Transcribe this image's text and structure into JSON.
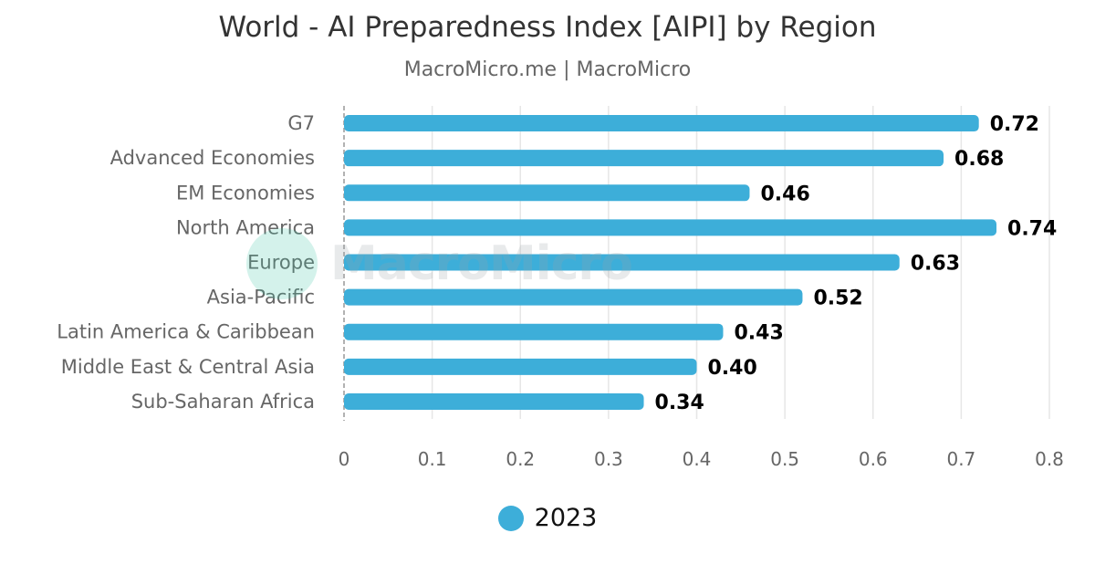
{
  "chart_data": {
    "type": "bar",
    "orientation": "horizontal",
    "title": "World - AI Preparedness Index [AIPI] by Region",
    "subtitle": "MacroMicro.me | MacroMicro",
    "categories": [
      "G7",
      "Advanced Economies",
      "EM Economies",
      "North America",
      "Europe",
      "Asia-Pacific",
      "Latin America & Caribbean",
      "Middle East & Central Asia",
      "Sub-Saharan Africa"
    ],
    "series": [
      {
        "name": "2023",
        "values": [
          0.72,
          0.68,
          0.46,
          0.74,
          0.63,
          0.52,
          0.43,
          0.4,
          0.34
        ],
        "labels": [
          "0.72",
          "0.68",
          "0.46",
          "0.74",
          "0.63",
          "0.52",
          "0.43",
          "0.40",
          "0.34"
        ]
      }
    ],
    "xlim": [
      0,
      0.8
    ],
    "xticks": [
      0,
      0.1,
      0.2,
      0.3,
      0.4,
      0.5,
      0.6,
      0.7,
      0.8
    ],
    "xtick_labels": [
      "0",
      "0.1",
      "0.2",
      "0.3",
      "0.4",
      "0.5",
      "0.6",
      "0.7",
      "0.8"
    ],
    "grid": true,
    "legend_position": "bottom-center"
  },
  "colors": {
    "bar": "#3daed9",
    "grid": "#e6e6e6",
    "baseline": "#999999"
  },
  "watermark": {
    "logo_icon": "macromicro-logo-icon",
    "text": "MacroMicro"
  }
}
